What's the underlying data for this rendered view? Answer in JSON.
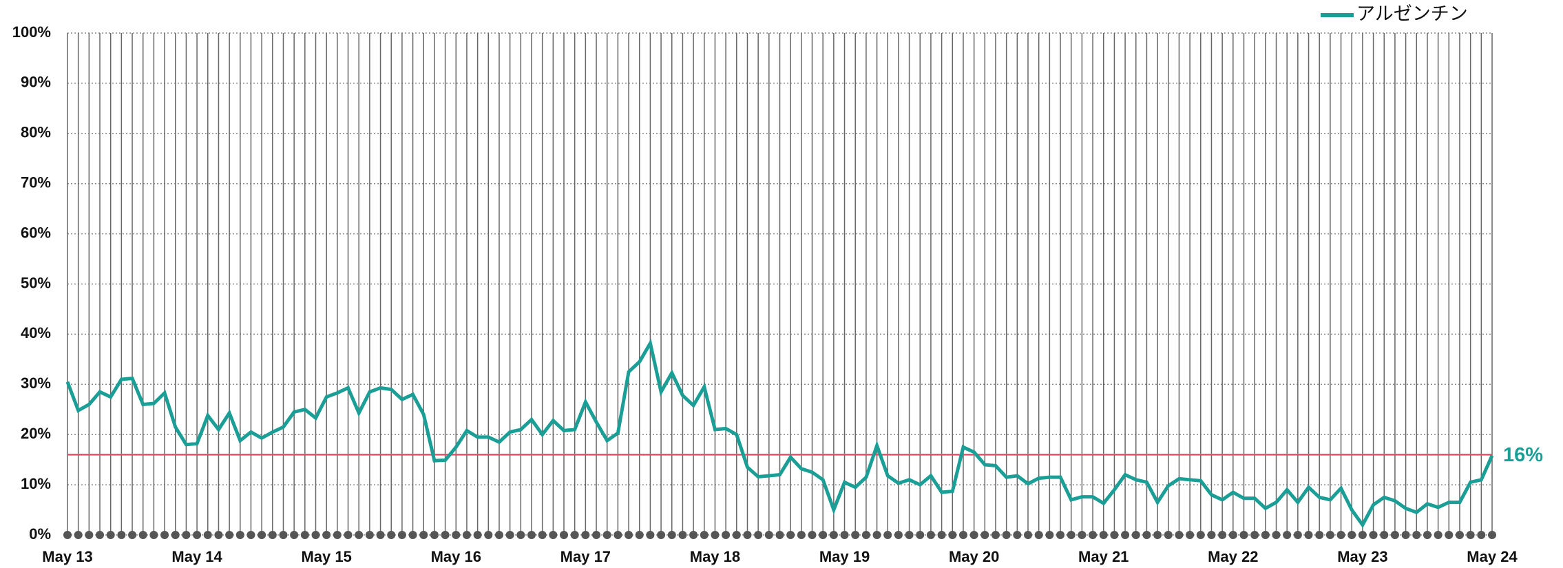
{
  "chart_data": {
    "type": "line",
    "categories": [
      "May 13",
      null,
      null,
      null,
      null,
      null,
      null,
      null,
      null,
      null,
      null,
      null,
      "May 14",
      null,
      null,
      null,
      null,
      null,
      null,
      null,
      null,
      null,
      null,
      null,
      "May 15",
      null,
      null,
      null,
      null,
      null,
      null,
      null,
      null,
      null,
      null,
      null,
      "May 16",
      null,
      null,
      null,
      null,
      null,
      null,
      null,
      null,
      null,
      null,
      null,
      "May 17",
      null,
      null,
      null,
      null,
      null,
      null,
      null,
      null,
      null,
      null,
      null,
      "May 18",
      null,
      null,
      null,
      null,
      null,
      null,
      null,
      null,
      null,
      null,
      null,
      "May 19",
      null,
      null,
      null,
      null,
      null,
      null,
      null,
      null,
      null,
      null,
      null,
      "May 20",
      null,
      null,
      null,
      null,
      null,
      null,
      null,
      null,
      null,
      null,
      null,
      "May 21",
      null,
      null,
      null,
      null,
      null,
      null,
      null,
      null,
      null,
      null,
      null,
      "May 22",
      null,
      null,
      null,
      null,
      null,
      null,
      null,
      null,
      null,
      null,
      null,
      "May 23",
      null,
      null,
      null,
      null,
      null,
      null,
      null,
      null,
      null,
      null,
      null,
      "May 24"
    ],
    "series": [
      {
        "name": "アルゼンチン",
        "color": "#1a9e96",
        "values": [
          30.5,
          24.8,
          26,
          28.5,
          27.5,
          31,
          31.2,
          26,
          26.2,
          28.3,
          21.5,
          18,
          18.2,
          23.8,
          21,
          24.3,
          18.8,
          20.5,
          19.3,
          20.5,
          21.5,
          24.5,
          25,
          23.3,
          27.5,
          28.3,
          29.3,
          24.3,
          28.5,
          29.3,
          29,
          27,
          28,
          24,
          14.8,
          14.9,
          17.5,
          20.8,
          19.5,
          19.5,
          18.5,
          20.5,
          21,
          23,
          20,
          22.8,
          20.8,
          21,
          26.5,
          22.5,
          18.8,
          20.3,
          32.5,
          34.5,
          38.2,
          28.5,
          32.3,
          27.8,
          25.8,
          29.5,
          21,
          21.2,
          20,
          13.5,
          11.6,
          11.8,
          12,
          15.5,
          13.2,
          12.5,
          11,
          5,
          10.5,
          9.5,
          11.5,
          17.8,
          11.8,
          10.3,
          11,
          10,
          11.8,
          8.5,
          8.7,
          17.5,
          16.5,
          14,
          13.8,
          11.5,
          11.8,
          10.2,
          11.3,
          11.5,
          11.5,
          7,
          7.6,
          7.6,
          6.3,
          9,
          12,
          11,
          10.5,
          6.5,
          9.8,
          11.2,
          11,
          10.8,
          8,
          7,
          8.5,
          7.3,
          7.3,
          5.3,
          6.5,
          9,
          6.5,
          9.5,
          7.5,
          7,
          9.3,
          5,
          2,
          6,
          7.5,
          6.8,
          5.3,
          4.5,
          6.2,
          5.5,
          6.5,
          6.5,
          10.5,
          11,
          15.8
        ]
      }
    ],
    "ylim": [
      0,
      100
    ],
    "yticks": [
      {
        "value": 0,
        "label": "0%"
      },
      {
        "value": 10,
        "label": "10%"
      },
      {
        "value": 20,
        "label": "20%"
      },
      {
        "value": 30,
        "label": "30%"
      },
      {
        "value": 40,
        "label": "40%"
      },
      {
        "value": 50,
        "label": "50%"
      },
      {
        "value": 60,
        "label": "60%"
      },
      {
        "value": 70,
        "label": "70%"
      },
      {
        "value": 80,
        "label": "80%"
      },
      {
        "value": 90,
        "label": "90%"
      },
      {
        "value": 100,
        "label": "100%"
      }
    ],
    "reference_line": {
      "value": 16,
      "label": "16%",
      "color": "#e0506a"
    },
    "grid": true,
    "legend": "top-right"
  }
}
